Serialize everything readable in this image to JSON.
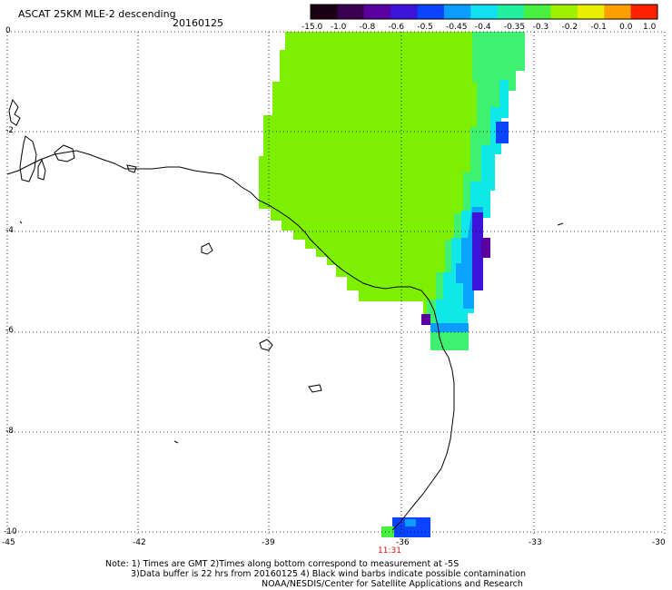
{
  "header": {
    "title": "ASCAT 25KM MLE-2 descending",
    "date": "20160125"
  },
  "colorbar": {
    "labels": [
      "-15.0",
      "-1.0",
      "-0.8",
      "-0.6",
      "-0.5",
      "-0.45",
      "-0.4",
      "-0.35",
      "-0.3",
      "-0.2",
      "-0.1",
      "0.0",
      "1.0"
    ],
    "colors": [
      "#1a0012",
      "#3a0050",
      "#5a00a0",
      "#3a14d8",
      "#0a44ff",
      "#0a9cff",
      "#10e0f0",
      "#20f0a0",
      "#48f040",
      "#a0f000",
      "#e8f000",
      "#ffa000",
      "#ff2000"
    ]
  },
  "axes": {
    "lat_labels": [
      "0",
      "-2",
      "-4",
      "-6",
      "-8",
      "-10"
    ],
    "lon_labels": [
      "-45",
      "-42",
      "-39",
      "-36",
      "-33",
      "-30"
    ]
  },
  "time_label": "11:31",
  "time_color": "#d01010",
  "notes": [
    "Note: 1) Times are GMT 2)Times along bottom correspond to measurement at -5S",
    "3)Data buffer is 22 hrs from 20160125 4) Black wind barbs indicate possible contamination",
    "NOAA/NESDIS/Center for Satellite Applications and Research"
  ]
}
